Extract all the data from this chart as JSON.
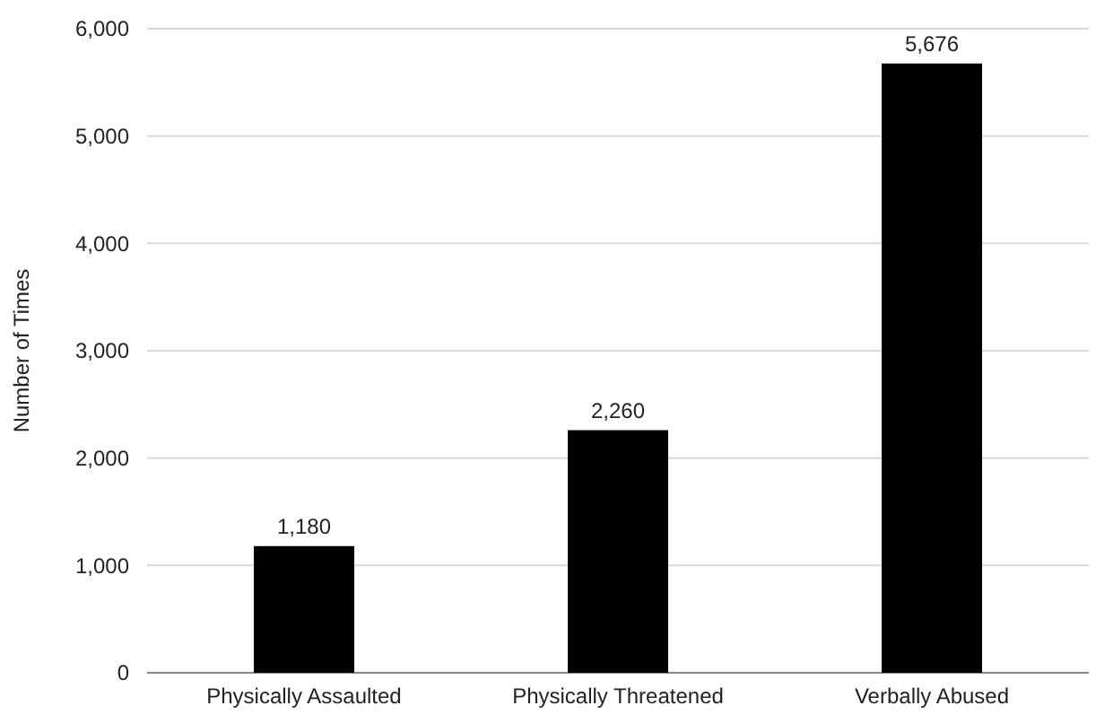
{
  "chart_data": {
    "type": "bar",
    "ylabel": "Number of Times",
    "categories": [
      "Physically Assaulted",
      "Physically Threatened",
      "Verbally Abused"
    ],
    "values": [
      1180,
      2260,
      5676
    ],
    "color": "#000000",
    "ylim": [
      0,
      6000
    ],
    "yticks": [
      {
        "value": 0,
        "label": "0"
      },
      {
        "value": 1000,
        "label": "1,000"
      },
      {
        "value": 2000,
        "label": "2,000"
      },
      {
        "value": 3000,
        "label": "3,000"
      },
      {
        "value": 4000,
        "label": "4,000"
      },
      {
        "value": 5000,
        "label": "5,000"
      },
      {
        "value": 6000,
        "label": "6,000"
      }
    ],
    "grid": "y",
    "value_labels": [
      "1,180",
      "2,260",
      "5,676"
    ]
  }
}
